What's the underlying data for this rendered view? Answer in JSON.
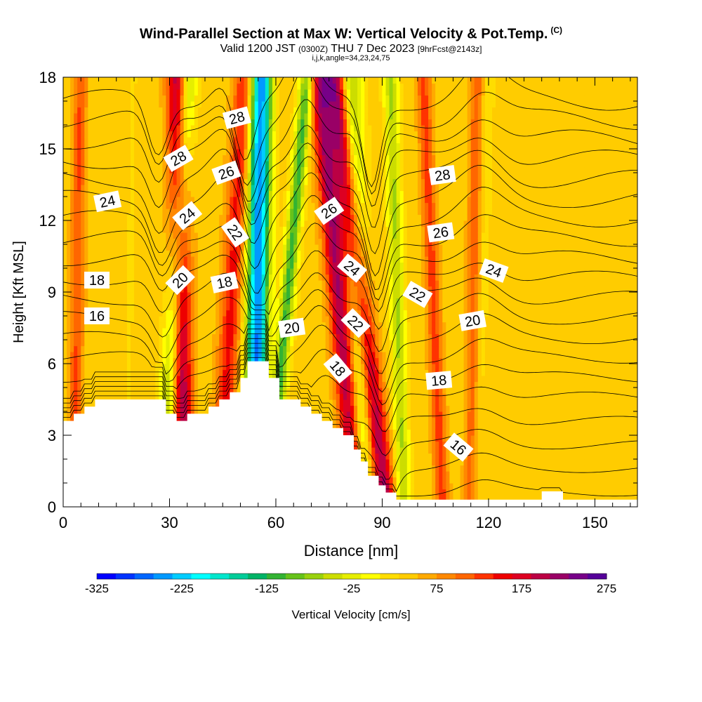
{
  "title": {
    "main": "Wind-Parallel Section at Max W: Vertical Velocity & Pot.Temp.",
    "copyright": "(C)",
    "valid_prefix": "Valid 1200 JST",
    "valid_utc": "(0300Z)",
    "valid_date": "THU 7 Dec 2023",
    "forecast": "[9hrFcst@2143z]",
    "indices": "i,j,k,angle=34,23,24,75"
  },
  "colorbar": {
    "label": "Vertical Velocity [cm/s]",
    "tick_labels": [
      "-325",
      "-225",
      "-125",
      "-25",
      "75",
      "175",
      "275"
    ],
    "colors": [
      "#0000ff",
      "#0033ff",
      "#0066ff",
      "#0099ff",
      "#00ccff",
      "#00ffff",
      "#00e6cc",
      "#00cc99",
      "#00b366",
      "#33b333",
      "#66c21a",
      "#99d10d",
      "#ccdd00",
      "#e6ee00",
      "#ffff00",
      "#ffdd00",
      "#ffcc00",
      "#ffaa00",
      "#ff8800",
      "#ff6600",
      "#ff3300",
      "#ee0000",
      "#dd0022",
      "#bb0044",
      "#990066",
      "#770088",
      "#550099"
    ]
  },
  "chart_data": {
    "type": "heatmap",
    "xlabel": "Distance [nm]",
    "ylabel": "Height [Kft MSL]",
    "xlim": [
      0,
      162
    ],
    "ylim": [
      0,
      18
    ],
    "xticks": [
      0,
      30,
      60,
      90,
      120,
      150
    ],
    "yticks": [
      0,
      3,
      6,
      9,
      12,
      15,
      18
    ],
    "color_variable": "Vertical Velocity [cm/s]",
    "color_range": [
      -325,
      275
    ],
    "background_w": 40,
    "velocity_bands": [
      {
        "base_x": 28,
        "lean": 0.4,
        "width": 2.5,
        "w": -120
      },
      {
        "base_x": 34,
        "lean": -0.1,
        "width": 3,
        "w": 170
      },
      {
        "base_x": 44,
        "lean": 0.4,
        "width": 3,
        "w": 110
      },
      {
        "base_x": 54,
        "lean": 0.1,
        "width": 3,
        "w": -300
      },
      {
        "base_x": 58,
        "lean": 0.6,
        "width": 2,
        "w": -150
      },
      {
        "base_x": 83,
        "lean": -0.6,
        "width": 3,
        "w": 170
      },
      {
        "base_x": 85,
        "lean": -0.2,
        "width": 3,
        "w": -110
      },
      {
        "base_x": 91,
        "lean": -0.8,
        "width": 3,
        "w": 175
      },
      {
        "base_x": 96,
        "lean": -0.2,
        "width": 2,
        "w": -100
      },
      {
        "base_x": 107,
        "lean": -0.3,
        "width": 2,
        "w": 90
      },
      {
        "base_x": 115,
        "lean": 0.1,
        "width": 2,
        "w": 80
      },
      {
        "base_x": 116,
        "lean": 0.2,
        "width": 2,
        "w": -30
      },
      {
        "base_x": 3,
        "lean": 0.1,
        "width": 2,
        "w": 80
      },
      {
        "base_x": 18,
        "lean": 0.1,
        "width": 3,
        "w": -10
      }
    ],
    "terrain_profile": [
      [
        0,
        3.6
      ],
      [
        3,
        3.6
      ],
      [
        3,
        3.9
      ],
      [
        6,
        3.9
      ],
      [
        6,
        4.2
      ],
      [
        9,
        4.2
      ],
      [
        9,
        4.5
      ],
      [
        29,
        4.5
      ],
      [
        29,
        3.9
      ],
      [
        32,
        3.9
      ],
      [
        32,
        3.6
      ],
      [
        35,
        3.6
      ],
      [
        35,
        3.9
      ],
      [
        41,
        3.9
      ],
      [
        41,
        4.2
      ],
      [
        44,
        4.2
      ],
      [
        44,
        4.5
      ],
      [
        47,
        4.5
      ],
      [
        47,
        4.8
      ],
      [
        50,
        4.8
      ],
      [
        50,
        5.4
      ],
      [
        52,
        5.4
      ],
      [
        52,
        6.1
      ],
      [
        58,
        6.1
      ],
      [
        58,
        5.4
      ],
      [
        61,
        5.4
      ],
      [
        61,
        4.5
      ],
      [
        67,
        4.5
      ],
      [
        67,
        4.2
      ],
      [
        70,
        4.2
      ],
      [
        70,
        3.9
      ],
      [
        73,
        3.9
      ],
      [
        73,
        3.6
      ],
      [
        76,
        3.6
      ],
      [
        76,
        3.3
      ],
      [
        79,
        3.3
      ],
      [
        79,
        3.0
      ],
      [
        82,
        3.0
      ],
      [
        82,
        2.4
      ],
      [
        84,
        2.4
      ],
      [
        84,
        1.9
      ],
      [
        86,
        1.9
      ],
      [
        86,
        1.3
      ],
      [
        89,
        1.3
      ],
      [
        89,
        0.9
      ],
      [
        91,
        0.9
      ],
      [
        91,
        0.6
      ],
      [
        94,
        0.6
      ],
      [
        94,
        0.3
      ],
      [
        135,
        0.3
      ],
      [
        135,
        0.65
      ],
      [
        141,
        0.65
      ],
      [
        141,
        0.3
      ],
      [
        162,
        0.3
      ]
    ],
    "theta_isentropes": {
      "levels": [
        10,
        11,
        12,
        13,
        14,
        15,
        16,
        17,
        18,
        19,
        20,
        21,
        22,
        23,
        24,
        25,
        26,
        27,
        28,
        29
      ],
      "labeled": [
        16,
        18,
        20,
        22,
        24,
        26,
        28
      ]
    },
    "contour_labels": [
      {
        "text": "28",
        "x": 49,
        "y": 16.3,
        "angle": -15
      },
      {
        "text": "28",
        "x": 32.5,
        "y": 14.6,
        "angle": -30
      },
      {
        "text": "28",
        "x": 107,
        "y": 13.9,
        "angle": -8
      },
      {
        "text": "26",
        "x": 46,
        "y": 14.0,
        "angle": -20
      },
      {
        "text": "26",
        "x": 75,
        "y": 12.4,
        "angle": -35
      },
      {
        "text": "26",
        "x": 106.5,
        "y": 11.5,
        "angle": -8
      },
      {
        "text": "24",
        "x": 12.5,
        "y": 12.8,
        "angle": -12
      },
      {
        "text": "24",
        "x": 35,
        "y": 12.2,
        "angle": -40
      },
      {
        "text": "24",
        "x": 81.5,
        "y": 10.0,
        "angle": 40
      },
      {
        "text": "24",
        "x": 121.5,
        "y": 9.9,
        "angle": 20
      },
      {
        "text": "22",
        "x": 48.5,
        "y": 11.5,
        "angle": 55
      },
      {
        "text": "22",
        "x": 82.5,
        "y": 7.7,
        "angle": 45
      },
      {
        "text": "22",
        "x": 100,
        "y": 8.9,
        "angle": 30
      },
      {
        "text": "20",
        "x": 33,
        "y": 9.5,
        "angle": -45
      },
      {
        "text": "20",
        "x": 64.5,
        "y": 7.5,
        "angle": -8
      },
      {
        "text": "20",
        "x": 115.5,
        "y": 7.8,
        "angle": -10
      },
      {
        "text": "18",
        "x": 9.5,
        "y": 9.5,
        "angle": 0
      },
      {
        "text": "18",
        "x": 45.5,
        "y": 9.4,
        "angle": -12
      },
      {
        "text": "18",
        "x": 77.5,
        "y": 5.8,
        "angle": 50
      },
      {
        "text": "18",
        "x": 106,
        "y": 5.3,
        "angle": -5
      },
      {
        "text": "16",
        "x": 9.5,
        "y": 8.0,
        "angle": 0
      },
      {
        "text": "16",
        "x": 111.5,
        "y": 2.5,
        "angle": 40
      }
    ]
  }
}
